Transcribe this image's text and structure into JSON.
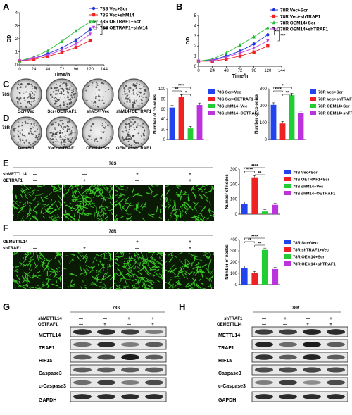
{
  "panels": {
    "A": "A",
    "B": "B",
    "C": "C",
    "D": "D",
    "E": "E",
    "F": "F",
    "G": "G",
    "H": "H"
  },
  "chart_data": [
    {
      "id": "A",
      "type": "line",
      "xlabel": "Time/h",
      "ylabel": "OD",
      "x": [
        0,
        24,
        48,
        72,
        96,
        120
      ],
      "xticks": [
        0,
        24,
        48,
        72,
        96,
        120,
        144
      ],
      "yticks": [
        0,
        1,
        2,
        3,
        4
      ],
      "ylim": [
        0,
        4
      ],
      "xlim": [
        0,
        144
      ],
      "series": [
        {
          "name": "78S Vec+Scr",
          "color": "#2233dd",
          "marker": "circle",
          "values": [
            0.3,
            0.5,
            0.85,
            1.3,
            1.9,
            2.7
          ]
        },
        {
          "name": "78S Vec+shM14",
          "color": "#ee2222",
          "marker": "square",
          "values": [
            0.3,
            0.4,
            0.65,
            0.95,
            1.35,
            1.85
          ]
        },
        {
          "name": "78S OETRAF1+Scr",
          "color": "#22bb33",
          "marker": "triangle",
          "values": [
            0.3,
            0.6,
            1.1,
            1.8,
            2.6,
            3.3
          ]
        },
        {
          "name": "78S OETRAF1+shM14",
          "color": "#bb44dd",
          "marker": "triangle-down",
          "values": [
            0.3,
            0.5,
            0.75,
            1.15,
            1.6,
            2.35
          ]
        }
      ],
      "significance": [
        "**",
        "***"
      ]
    },
    {
      "id": "B",
      "type": "line",
      "xlabel": "Time/h",
      "ylabel": "OD",
      "x": [
        0,
        24,
        48,
        72,
        96,
        120
      ],
      "xticks": [
        0,
        24,
        48,
        72,
        96,
        120,
        144
      ],
      "yticks": [
        0,
        1,
        2,
        3,
        4,
        5
      ],
      "ylim": [
        0,
        5
      ],
      "xlim": [
        0,
        144
      ],
      "series": [
        {
          "name": "78R Vec+Scr",
          "color": "#2233dd",
          "marker": "circle",
          "values": [
            0.5,
            0.6,
            1.0,
            1.5,
            2.2,
            3.1
          ]
        },
        {
          "name": "78R Vec+shTRAF1",
          "color": "#ee2222",
          "marker": "square",
          "values": [
            0.5,
            0.5,
            0.7,
            1.0,
            1.4,
            2.0
          ]
        },
        {
          "name": "78R OEM14+Scr",
          "color": "#22bb33",
          "marker": "triangle",
          "values": [
            0.5,
            0.7,
            1.3,
            2.1,
            2.9,
            3.8
          ]
        },
        {
          "name": "78R OEM14+shTRAF1",
          "color": "#bb44dd",
          "marker": "triangle-down",
          "values": [
            0.5,
            0.55,
            0.9,
            1.3,
            1.8,
            2.5
          ]
        }
      ],
      "significance": [
        "***",
        "***"
      ]
    },
    {
      "id": "C-bar",
      "type": "bar",
      "ylabel": "Number of colonies",
      "yticks": [
        0,
        20,
        40,
        60,
        80,
        100
      ],
      "ylim": [
        0,
        100
      ],
      "categories": [
        "78S Scr+Vec",
        "78S Scr+OETRAF1",
        "78S shM14+Vec",
        "78S shM14+OETRAF1"
      ],
      "values": [
        63,
        84,
        22,
        68
      ],
      "colors": [
        "#2244ee",
        "#ee2222",
        "#22cc33",
        "#bb33dd"
      ],
      "significance": [
        "****",
        "**",
        "*"
      ]
    },
    {
      "id": "D-bar",
      "type": "bar",
      "ylabel": "Number of colonies",
      "yticks": [
        0,
        100,
        200,
        300
      ],
      "ylim": [
        0,
        300
      ],
      "categories": [
        "78R Vec+Scr",
        "78R Vec+shTRAF1",
        "78R OEM14+Scr",
        "78R OEM14+shTRAF1"
      ],
      "values": [
        205,
        95,
        262,
        155
      ],
      "colors": [
        "#2244ee",
        "#ee2222",
        "#22cc33",
        "#bb33dd"
      ],
      "significance": [
        "*",
        "****",
        "**"
      ]
    },
    {
      "id": "E-bar",
      "type": "bar",
      "ylabel": "Number of nodes",
      "yticks": [
        0,
        100,
        200,
        300
      ],
      "ylim": [
        0,
        300
      ],
      "categories": [
        "78S Vec+Scr",
        "78S OETRAF1+Scr",
        "78S shM14+Vec",
        "78S shM14+OETRAF1"
      ],
      "values": [
        70,
        245,
        18,
        62
      ],
      "colors": [
        "#2244ee",
        "#ee2222",
        "#22cc33",
        "#bb33dd"
      ],
      "significance": [
        "****",
        "****",
        "**"
      ]
    },
    {
      "id": "F-bar",
      "type": "bar",
      "ylabel": "Number of nodes",
      "yticks": [
        0,
        100,
        200,
        300,
        400
      ],
      "ylim": [
        0,
        400
      ],
      "categories": [
        "78R Scr+Vec",
        "78R shTRAF1+Vec",
        "78R OEM14+Scr",
        "78R OEM14+shTRAF1"
      ],
      "values": [
        148,
        100,
        308,
        138
      ],
      "colors": [
        "#2244ee",
        "#ee2222",
        "#22cc33",
        "#bb33dd"
      ],
      "significance": [
        "****",
        "**",
        "**"
      ]
    }
  ],
  "colony": {
    "c_row": "78S",
    "d_row": "78R",
    "c_labels": [
      "Scr+Vec",
      "Scr+OETRAF1",
      "shM14+Vec",
      "shM14+OETRAF1"
    ],
    "d_labels": [
      "Vec+Scr",
      "Vec+shTRAF1",
      "OEM14+Scr",
      "OEM14+shTRAF1"
    ]
  },
  "tube_e": {
    "title": "78S",
    "row1_label": "shMETTL14",
    "row2_label": "OETRAF1",
    "row1": [
      "—",
      "—",
      "+",
      "+"
    ],
    "row2": [
      "—",
      "+",
      "—",
      "+"
    ]
  },
  "tube_f": {
    "title": "78R",
    "row1_label": "OEMETTL14",
    "row2_label": "shTRAF1",
    "row1": [
      "—",
      "—",
      "+",
      "+"
    ],
    "row2": [
      "—",
      "+",
      "—",
      "+"
    ]
  },
  "blot_g": {
    "title": "78S",
    "row1_label": "shMETTL14",
    "row2_label": "OETRAF1",
    "row1": [
      "—",
      "—",
      "+",
      "+"
    ],
    "row2": [
      "—",
      "+",
      "—",
      "+"
    ],
    "proteins": [
      "METTL14",
      "TRAF1",
      "HIF1a",
      "Caspase3",
      "c-Caspase3",
      "GAPDH"
    ]
  },
  "blot_h": {
    "title": "78R",
    "row1_label": "shTRAF1",
    "row2_label": "OEMETTL14",
    "row1": [
      "—",
      "+",
      "—",
      "+"
    ],
    "row2": [
      "—",
      "—",
      "+",
      "+"
    ],
    "proteins": [
      "METTL14",
      "TRAF1",
      "HIF1a",
      "Caspase3",
      "c-Caspase3",
      "GAPDH"
    ]
  }
}
